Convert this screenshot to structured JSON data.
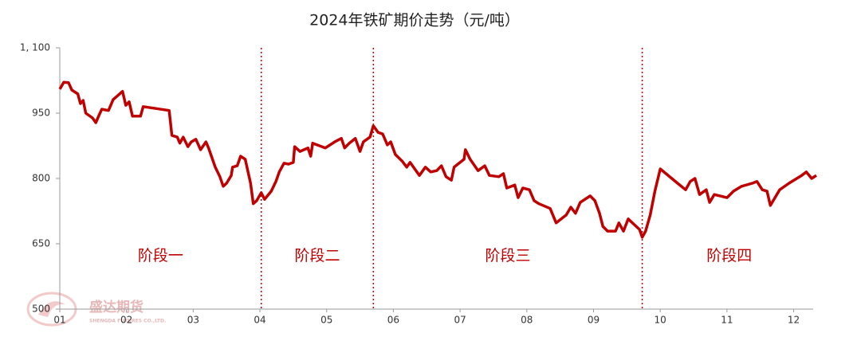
{
  "chart_data": {
    "type": "line",
    "title": "2024年铁矿期价走势（元/吨）",
    "color": "#c00000",
    "x": [
      1.0,
      1.06,
      1.13,
      1.18,
      1.27,
      1.31,
      1.35,
      1.39,
      1.49,
      1.54,
      1.59,
      1.63,
      1.73,
      1.8,
      1.94,
      1.99,
      2.04,
      2.09,
      2.21,
      2.25,
      2.64,
      2.68,
      2.76,
      2.8,
      2.85,
      2.92,
      2.97,
      3.04,
      3.11,
      3.19,
      3.23,
      3.33,
      3.4,
      3.45,
      3.5,
      3.57,
      3.59,
      3.66,
      3.71,
      3.78,
      3.86,
      3.9,
      3.95,
      4.02,
      4.07,
      4.17,
      4.24,
      4.29,
      4.36,
      4.43,
      4.5,
      4.52,
      4.6,
      4.72,
      4.76,
      4.79,
      4.98,
      5.12,
      5.22,
      5.27,
      5.34,
      5.43,
      5.5,
      5.55,
      5.65,
      5.7,
      5.77,
      5.84,
      5.91,
      5.96,
      6.03,
      6.13,
      6.2,
      6.25,
      6.32,
      6.39,
      6.48,
      6.56,
      6.65,
      6.72,
      6.79,
      6.87,
      6.91,
      7.06,
      7.08,
      7.15,
      7.27,
      7.37,
      7.44,
      7.58,
      7.65,
      7.7,
      7.82,
      7.87,
      7.94,
      8.04,
      8.11,
      8.18,
      8.35,
      8.44,
      8.59,
      8.66,
      8.73,
      8.8,
      8.95,
      9.02,
      9.09,
      9.14,
      9.21,
      9.33,
      9.38,
      9.45,
      9.52,
      9.61,
      9.69,
      9.73,
      9.78,
      9.85,
      9.92,
      10.0,
      10.26,
      10.38,
      10.45,
      10.52,
      10.59,
      10.69,
      10.74,
      10.81,
      11.0,
      11.1,
      11.22,
      11.38,
      11.45,
      11.53,
      11.6,
      11.65,
      11.79,
      11.93,
      12.12,
      12.19,
      12.27,
      12.34
    ],
    "values": [
      1005,
      1021,
      1020,
      1003,
      994,
      972,
      979,
      950,
      939,
      928,
      946,
      959,
      956,
      981,
      1000,
      968,
      976,
      943,
      943,
      965,
      956,
      899,
      895,
      881,
      895,
      873,
      884,
      890,
      866,
      884,
      870,
      826,
      804,
      782,
      789,
      807,
      826,
      829,
      851,
      844,
      789,
      742,
      749,
      767,
      752,
      771,
      793,
      815,
      835,
      833,
      837,
      873,
      862,
      870,
      851,
      881,
      870,
      884,
      892,
      870,
      881,
      892,
      862,
      884,
      895,
      921,
      906,
      902,
      877,
      884,
      855,
      840,
      826,
      837,
      822,
      807,
      826,
      815,
      818,
      829,
      804,
      796,
      826,
      844,
      866,
      844,
      818,
      829,
      807,
      804,
      811,
      778,
      785,
      756,
      778,
      774,
      749,
      742,
      731,
      698,
      716,
      734,
      720,
      745,
      760,
      749,
      720,
      690,
      679,
      679,
      698,
      679,
      707,
      694,
      683,
      665,
      679,
      716,
      771,
      822,
      789,
      774,
      793,
      800,
      763,
      774,
      745,
      763,
      756,
      771,
      782,
      789,
      793,
      774,
      771,
      738,
      774,
      789,
      807,
      815,
      800,
      807
    ],
    "xlim": [
      1,
      12.34
    ],
    "xticks": [
      {
        "value": 1,
        "label": "01"
      },
      {
        "value": 2,
        "label": "02"
      },
      {
        "value": 3,
        "label": "03"
      },
      {
        "value": 4,
        "label": "04"
      },
      {
        "value": 5,
        "label": "05"
      },
      {
        "value": 6,
        "label": "06"
      },
      {
        "value": 7,
        "label": "07"
      },
      {
        "value": 8,
        "label": "08"
      },
      {
        "value": 9,
        "label": "09"
      },
      {
        "value": 10,
        "label": "10"
      },
      {
        "value": 11,
        "label": "11"
      },
      {
        "value": 12,
        "label": "12"
      }
    ],
    "ylim": [
      500,
      1100
    ],
    "yticks": [
      500,
      650,
      800,
      950,
      {
        "value": 1100,
        "label": "1, 100"
      }
    ],
    "dividers": [
      4.02,
      5.7,
      9.73
    ],
    "phases": [
      "阶段一",
      "阶段二",
      "阶段三",
      "阶段四"
    ],
    "watermark": "盛达期货",
    "watermark_sub": "SHENGDA FUTURES CO.,LTD."
  }
}
